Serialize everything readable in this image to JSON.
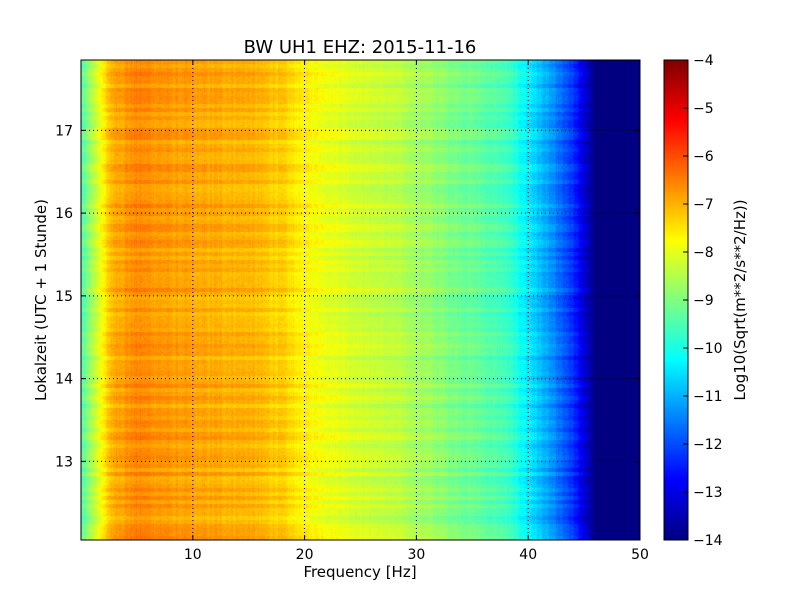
{
  "chart_data": {
    "type": "heatmap",
    "title": "BW UH1 EHZ: 2015-11-16",
    "xlabel": "Frequency [Hz]",
    "ylabel": "Lokalzeit (UTC + 1 Stunde)",
    "xlim": [
      0,
      50
    ],
    "ylim": [
      17.85,
      12.05
    ],
    "x_ticks": [
      10,
      20,
      30,
      40,
      50
    ],
    "y_ticks": [
      13,
      14,
      15,
      16,
      17
    ],
    "grid": true,
    "colormap": "jet",
    "colorbar": {
      "label": "Log10(Sqrt(m**2/s**2/Hz))",
      "range": [
        -14,
        -4
      ],
      "ticks": [
        -4,
        -5,
        -6,
        -7,
        -8,
        -9,
        -10,
        -11,
        -12,
        -13,
        -14
      ]
    },
    "spectrum_profile": {
      "frequencies": [
        0,
        1,
        2,
        3,
        5,
        8,
        10,
        15,
        18,
        20,
        22,
        25,
        28,
        30,
        33,
        35,
        38,
        40,
        42,
        44,
        46,
        50
      ],
      "values": [
        -9.5,
        -8.6,
        -7.6,
        -6.9,
        -6.6,
        -6.8,
        -6.9,
        -7.0,
        -7.3,
        -7.7,
        -7.9,
        -8.2,
        -8.4,
        -8.6,
        -9.0,
        -9.2,
        -9.6,
        -10.4,
        -11.3,
        -12.3,
        -14.0,
        -14.0
      ]
    }
  }
}
